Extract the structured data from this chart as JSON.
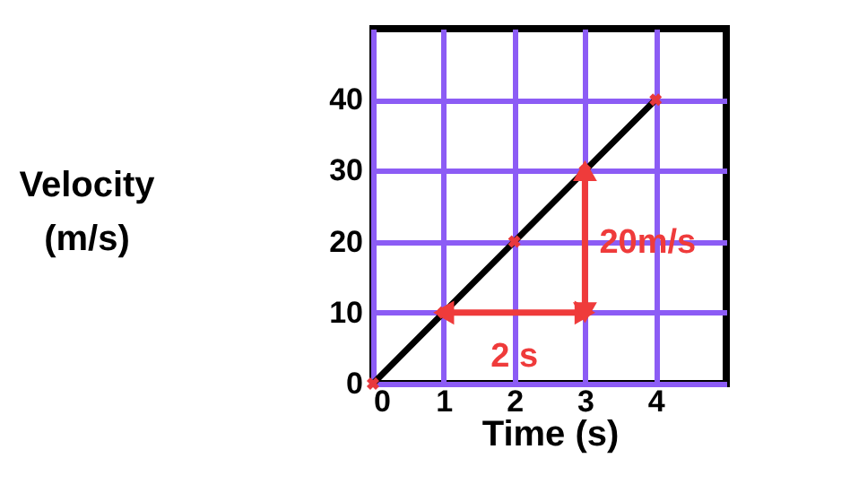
{
  "chart_data": {
    "type": "line",
    "xlabel": "Time (s)",
    "ylabel": "Velocity (m/s)",
    "xlim": [
      0,
      5
    ],
    "ylim": [
      0,
      50
    ],
    "xticks": [
      0,
      1,
      2,
      3,
      4
    ],
    "yticks": [
      0,
      10,
      20,
      30,
      40
    ],
    "grid": true,
    "line_style": "solid",
    "series": [
      {
        "color": "#000000",
        "x": [
          0,
          1,
          2,
          3,
          4
        ],
        "values": [
          0,
          10,
          20,
          30,
          40
        ],
        "marker": "cross",
        "colors": [
          "#e8383d",
          "#e8383d",
          "#e8383d",
          "#e8383d",
          "#e8383d"
        ]
      },
      {
        "color": "#ef3b3b",
        "x": [
          1,
          3
        ],
        "values": [
          10,
          10
        ],
        "marker": "triangle"
      },
      {
        "color": "#ef3b3b",
        "x": [
          3,
          3
        ],
        "values": [
          10,
          30
        ],
        "marker": "triangle"
      }
    ],
    "annotations": [
      {
        "text": "2 s",
        "x": 2,
        "y": 10
      },
      {
        "text": "20m/s",
        "x": 3,
        "y": 20
      }
    ]
  }
}
